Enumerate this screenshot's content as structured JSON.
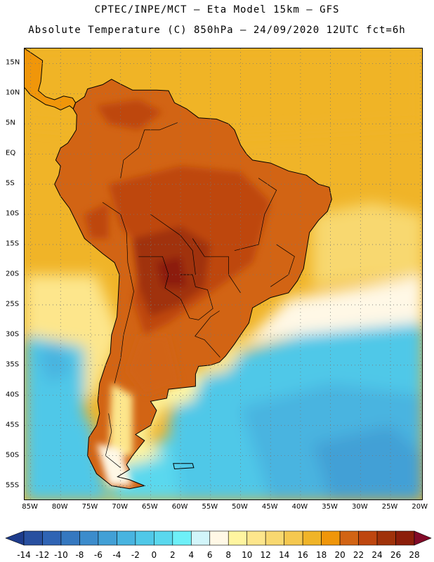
{
  "header": {
    "line1": "CPTEC/INPE/MCT – Eta Model 15km – GFS",
    "line2": "Absolute Temperature (C) 850hPa – 24/09/2020 12UTC fct=6h"
  },
  "axes": {
    "lat_labels": [
      "15N",
      "10N",
      "5N",
      "EQ",
      "5S",
      "10S",
      "15S",
      "20S",
      "25S",
      "30S",
      "35S",
      "40S",
      "45S",
      "50S",
      "55S"
    ],
    "lat_values": [
      15,
      10,
      5,
      0,
      -5,
      -10,
      -15,
      -20,
      -25,
      -30,
      -35,
      -40,
      -45,
      -50,
      -55
    ],
    "lon_labels": [
      "85W",
      "80W",
      "75W",
      "70W",
      "65W",
      "60W",
      "55W",
      "50W",
      "45W",
      "40W",
      "35W",
      "30W",
      "25W",
      "20W"
    ],
    "lon_values": [
      -85,
      -80,
      -75,
      -70,
      -65,
      -60,
      -55,
      -50,
      -45,
      -40,
      -35,
      -30,
      -25,
      -20
    ],
    "lon_range": [
      -86,
      -19.5
    ],
    "lat_range": [
      -57.5,
      17.5
    ],
    "grid": "dotted"
  },
  "colorbar": {
    "labels": [
      "-14",
      "-12",
      "-10",
      "-8",
      "-6",
      "-4",
      "-2",
      "0",
      "2",
      "4",
      "6",
      "8",
      "10",
      "12",
      "14",
      "16",
      "18",
      "20",
      "22",
      "24",
      "26",
      "28"
    ],
    "values": [
      -14,
      -12,
      -10,
      -8,
      -6,
      -4,
      -2,
      0,
      2,
      4,
      6,
      8,
      10,
      12,
      14,
      16,
      18,
      20,
      22,
      24,
      26,
      28
    ],
    "colors": [
      "#1e3c8c",
      "#2850a0",
      "#2f64b4",
      "#3578c0",
      "#3c8ccc",
      "#42a0d6",
      "#48b4e0",
      "#50c8e8",
      "#5ad8ee",
      "#6ef0f8",
      "#d2f5fa",
      "#fff8e6",
      "#fff5a0",
      "#fde68c",
      "#f8d870",
      "#f5c850",
      "#f0b428",
      "#f0960a",
      "#d26414",
      "#be460f",
      "#a0320a",
      "#8c1e0a",
      "#6e1414",
      "#820a28"
    ]
  },
  "chart_data": {
    "type": "heatmap",
    "variable": "Absolute Temperature (C) 850hPa",
    "units": "C",
    "date": "24/09/2020 12UTC",
    "forecast": "fct=6h",
    "xlim": [
      -86,
      -19.5
    ],
    "ylim": [
      -57.5,
      17.5
    ],
    "scale_min": -14,
    "scale_max": 28,
    "regions": [
      {
        "name": "central-brazil-paraguay-hot-core",
        "value_range": [
          24,
          28
        ]
      },
      {
        "name": "northern-south-america",
        "value_range": [
          20,
          24
        ]
      },
      {
        "name": "tropical-atlantic-north",
        "value_range": [
          16,
          20
        ]
      },
      {
        "name": "southern-brazil-uruguay-patagonia-north",
        "value_range": [
          18,
          22
        ]
      },
      {
        "name": "south-atlantic",
        "value_range": [
          0,
          4
        ]
      },
      {
        "name": "southern-pacific",
        "value_range": [
          2,
          6
        ]
      },
      {
        "name": "drake-passage",
        "value_range": [
          -6,
          -2
        ]
      }
    ]
  }
}
